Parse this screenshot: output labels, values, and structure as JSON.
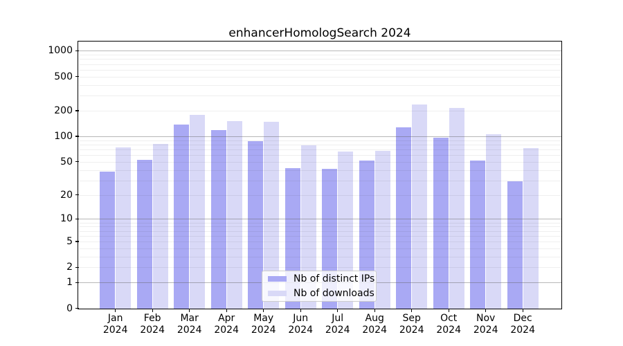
{
  "title": "enhancerHomologSearch 2024",
  "colors": {
    "ips_bar": "#a9a9f4",
    "downloads_bar": "#d9d9f7",
    "major_gridline": "#ababab",
    "minor_gridline": "#ededed",
    "axis": "#000000",
    "legend_border": "#cccccc"
  },
  "legend": {
    "items": [
      {
        "label": "Nb of distinct IPs",
        "color": "#a9a9f4"
      },
      {
        "label": "Nb of downloads",
        "color": "#d9d9f7"
      }
    ],
    "position": "lower center"
  },
  "y_axis": {
    "tick_labels": [
      "1000",
      "500",
      "200",
      "100",
      "50",
      "20",
      "10",
      "5",
      "2",
      "1",
      "0"
    ],
    "scale": "log10(value+1)"
  },
  "x_axis": {
    "months": [
      "Jan",
      "Feb",
      "Mar",
      "Apr",
      "May",
      "Jun",
      "Jul",
      "Aug",
      "Sep",
      "Oct",
      "Nov",
      "Dec"
    ],
    "year": "2024"
  },
  "chart_data": {
    "type": "bar",
    "title": "enhancerHomologSearch 2024",
    "categories": [
      "Jan 2024",
      "Feb 2024",
      "Mar 2024",
      "Apr 2024",
      "May 2024",
      "Jun 2024",
      "Jul 2024",
      "Aug 2024",
      "Sep 2024",
      "Oct 2024",
      "Nov 2024",
      "Dec 2024"
    ],
    "series": [
      {
        "name": "Nb of distinct IPs",
        "color": "#a9a9f4",
        "values": [
          38,
          53,
          138,
          119,
          88,
          42,
          41,
          52,
          128,
          97,
          52,
          29
        ]
      },
      {
        "name": "Nb of downloads",
        "color": "#d9d9f7",
        "values": [
          74,
          82,
          180,
          152,
          149,
          78,
          66,
          67,
          234,
          216,
          106,
          73
        ]
      }
    ],
    "yscale": "log1p (log10 of value+1), ticks at 0,1,2,5,10,20,50,100,200,500,1000",
    "ylim": [
      0,
      1270
    ],
    "grid": "horizontal major (decades) + minor (2-9 per decade)",
    "legend_position": "lower center inside plot",
    "xlabel": "",
    "ylabel": ""
  }
}
